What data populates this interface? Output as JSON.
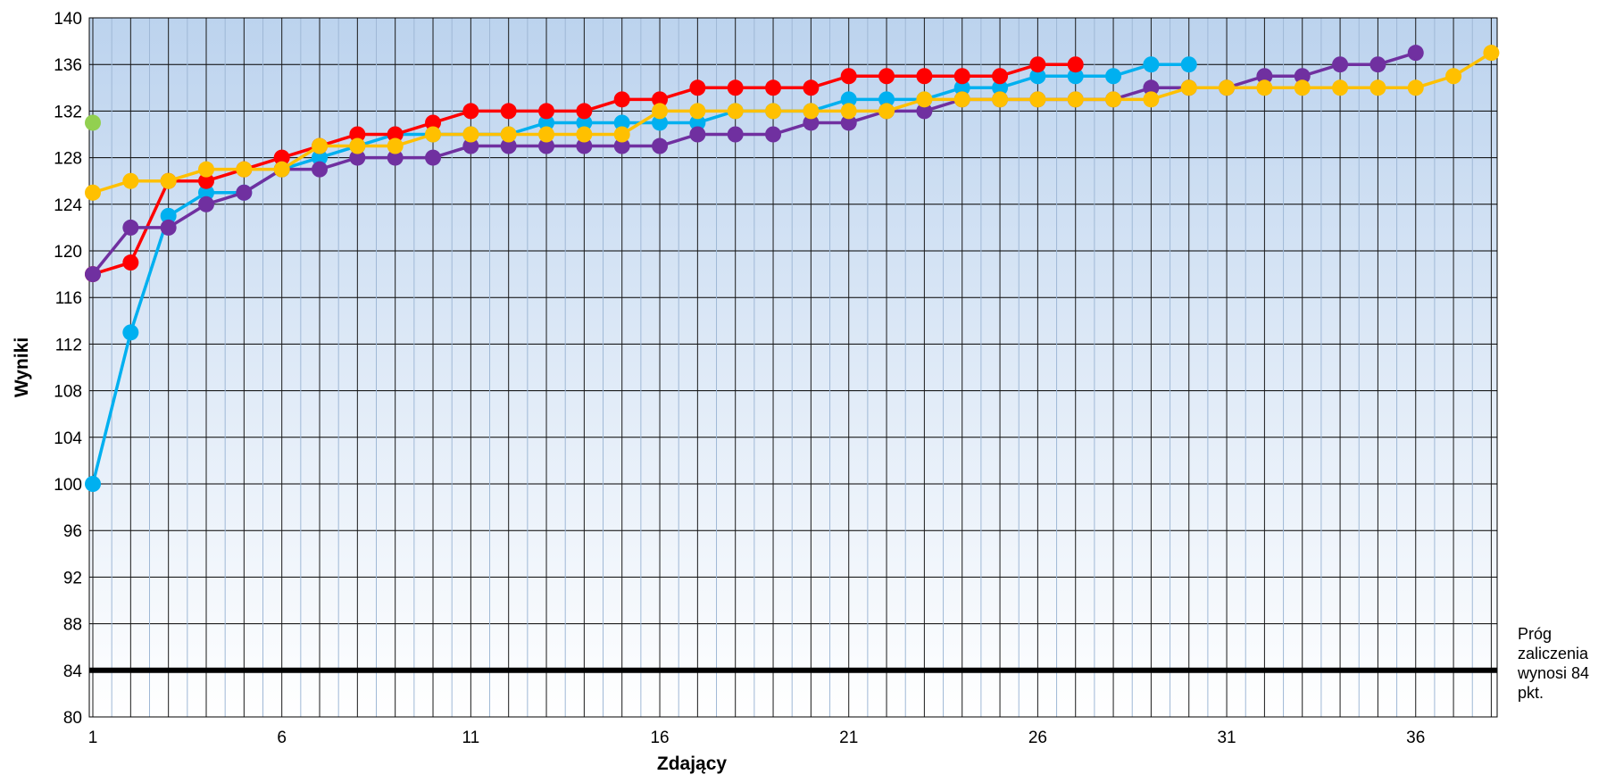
{
  "chart_data": {
    "type": "line",
    "title": "",
    "xlabel": "Zdający",
    "ylabel": "Wyniki",
    "xlim": [
      1,
      38
    ],
    "ylim": [
      80,
      140
    ],
    "x_ticks": [
      1,
      6,
      11,
      16,
      21,
      26,
      31,
      36
    ],
    "x_tick_labels": [
      "1",
      "6",
      "11",
      "16",
      "21",
      "26",
      "31",
      "36"
    ],
    "y_ticks": [
      80,
      84,
      88,
      92,
      96,
      100,
      104,
      108,
      112,
      116,
      120,
      124,
      128,
      132,
      136,
      140
    ],
    "y_tick_labels": [
      "80",
      "84",
      "88",
      "92",
      "96",
      "100",
      "104",
      "108",
      "112",
      "116",
      "120",
      "124",
      "128",
      "132",
      "136",
      "140"
    ],
    "grid": true,
    "legend": "none",
    "threshold": {
      "value": 84,
      "label": "Próg zaliczenia wynosi 84 pkt.",
      "color": "#000000"
    },
    "series": [
      {
        "color": "#92D050",
        "x": [
          1
        ],
        "values": [
          131
        ]
      },
      {
        "color": "#00B0F0",
        "x": [
          1,
          2,
          3,
          4,
          5,
          6,
          7,
          8,
          9,
          10,
          11,
          12,
          13,
          14,
          15,
          16,
          17,
          18,
          19,
          20,
          21,
          22,
          23,
          24,
          25,
          26,
          27,
          28,
          29,
          30
        ],
        "values": [
          100,
          113,
          123,
          125,
          125,
          127,
          128,
          129,
          130,
          130,
          130,
          130,
          131,
          131,
          131,
          131,
          131,
          132,
          132,
          132,
          133,
          133,
          133,
          134,
          134,
          135,
          135,
          135,
          136,
          136
        ]
      },
      {
        "color": "#FF0000",
        "x": [
          1,
          2,
          3,
          4,
          5,
          6,
          7,
          8,
          9,
          10,
          11,
          12,
          13,
          14,
          15,
          16,
          17,
          18,
          19,
          20,
          21,
          22,
          23,
          24,
          25,
          26,
          27
        ],
        "values": [
          118,
          119,
          126,
          126,
          127,
          128,
          129,
          130,
          130,
          131,
          132,
          132,
          132,
          132,
          133,
          133,
          134,
          134,
          134,
          134,
          135,
          135,
          135,
          135,
          135,
          136,
          136
        ]
      },
      {
        "color": "#7030A0",
        "x": [
          1,
          2,
          3,
          4,
          5,
          6,
          7,
          8,
          9,
          10,
          11,
          12,
          13,
          14,
          15,
          16,
          17,
          18,
          19,
          20,
          21,
          22,
          23,
          24,
          25,
          26,
          27,
          28,
          29,
          30,
          31,
          32,
          33,
          34,
          35,
          36
        ],
        "values": [
          118,
          122,
          122,
          124,
          125,
          127,
          127,
          128,
          128,
          128,
          129,
          129,
          129,
          129,
          129,
          129,
          130,
          130,
          130,
          131,
          131,
          132,
          132,
          133,
          133,
          133,
          133,
          133,
          134,
          134,
          134,
          135,
          135,
          136,
          136,
          137
        ]
      },
      {
        "color": "#FFC000",
        "x": [
          1,
          2,
          3,
          4,
          5,
          6,
          7,
          8,
          9,
          10,
          11,
          12,
          13,
          14,
          15,
          16,
          17,
          18,
          19,
          20,
          21,
          22,
          23,
          24,
          25,
          26,
          27,
          28,
          29,
          30,
          31,
          32,
          33,
          34,
          35,
          36,
          37,
          38
        ],
        "values": [
          125,
          126,
          126,
          127,
          127,
          127,
          129,
          129,
          129,
          130,
          130,
          130,
          130,
          130,
          130,
          132,
          132,
          132,
          132,
          132,
          132,
          132,
          133,
          133,
          133,
          133,
          133,
          133,
          133,
          134,
          134,
          134,
          134,
          134,
          134,
          134,
          135,
          137
        ]
      }
    ]
  }
}
